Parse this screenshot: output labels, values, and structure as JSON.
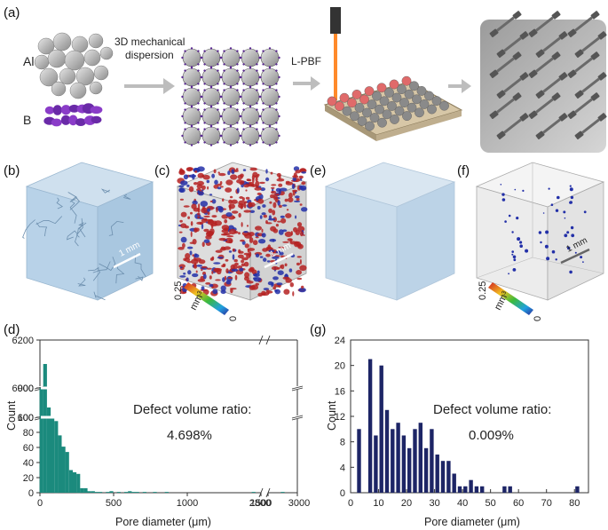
{
  "panel_labels": [
    "(a)",
    "(b)",
    "(c)",
    "(d)",
    "(e)",
    "(f)",
    "(g)"
  ],
  "schematic": {
    "al_label": "Al",
    "b_label": "B",
    "step1_label_line1": "3D mechanical",
    "step1_label_line2": "dispersion",
    "step2_label": "L-PBF"
  },
  "ct_panels": {
    "scale_bar_b": "1 mm",
    "scale_bar_c": "1 mm",
    "scale_bar_f": "1 mm",
    "colorbar_c": {
      "max": "0.25",
      "min": "0",
      "unit": "mm³"
    },
    "colorbar_f": {
      "max": "0.25",
      "min": "0",
      "unit": "mm³"
    }
  },
  "colors": {
    "teal_bars": "#1b8a7d",
    "navy_bars": "#1d2566",
    "ct_cube": "#bcd6ea",
    "pore_red": "#b52222",
    "pore_blue": "#2330a8"
  },
  "annotation_d": {
    "line1": "Defect volume ratio:",
    "line2": "4.698%"
  },
  "annotation_g": {
    "line1": "Defect volume ratio:",
    "line2": "0.009%"
  },
  "chart_data": [
    {
      "panel": "(d)",
      "type": "bar",
      "xlabel": "Pore diameter (μm)",
      "ylabel": "Count",
      "x_tick_labels": [
        "0",
        "500",
        "1000",
        "1500",
        "2800",
        "3000"
      ],
      "y_tick_labels": [
        "0",
        "20",
        "40",
        "60",
        "80",
        "100",
        "600",
        "900",
        "6000",
        "6200"
      ],
      "axis_breaks": {
        "y": [
          [
            100,
            600
          ],
          [
            900,
            6000
          ]
        ],
        "x": [
          [
            1500,
            2800
          ]
        ]
      },
      "x": [
        10,
        35,
        60,
        85,
        110,
        135,
        160,
        185,
        210,
        235,
        260,
        285,
        310,
        335,
        360,
        385,
        410,
        435,
        460,
        485,
        510,
        535,
        560,
        585,
        610,
        635,
        660,
        710,
        780,
        860,
        1450,
        2900
      ],
      "values": [
        6000,
        6100,
        700,
        600,
        95,
        76,
        61,
        54,
        30,
        27,
        25,
        6,
        6,
        2,
        2,
        1,
        1,
        0,
        1,
        2,
        0,
        1,
        0,
        1,
        2,
        1,
        1,
        1,
        1,
        1,
        1,
        1
      ]
    },
    {
      "panel": "(g)",
      "type": "bar",
      "xlabel": "Pore diameter (μm)",
      "ylabel": "Count",
      "xlim": [
        0,
        85
      ],
      "ylim": [
        0,
        24
      ],
      "x_ticks": [
        0,
        10,
        20,
        30,
        40,
        50,
        60,
        70,
        80
      ],
      "y_ticks": [
        0,
        4,
        8,
        12,
        16,
        20,
        24
      ],
      "x": [
        3,
        7,
        9,
        11,
        13,
        15,
        17,
        19,
        21,
        23,
        25,
        27,
        29,
        31,
        33,
        35,
        37,
        39,
        41,
        43,
        45,
        47,
        55,
        57,
        81
      ],
      "values": [
        10,
        21,
        9,
        20,
        13,
        10,
        11,
        9,
        7,
        10,
        11,
        7,
        10,
        6,
        5,
        5,
        3,
        1,
        1,
        2,
        1,
        1,
        1,
        1,
        1
      ]
    }
  ]
}
